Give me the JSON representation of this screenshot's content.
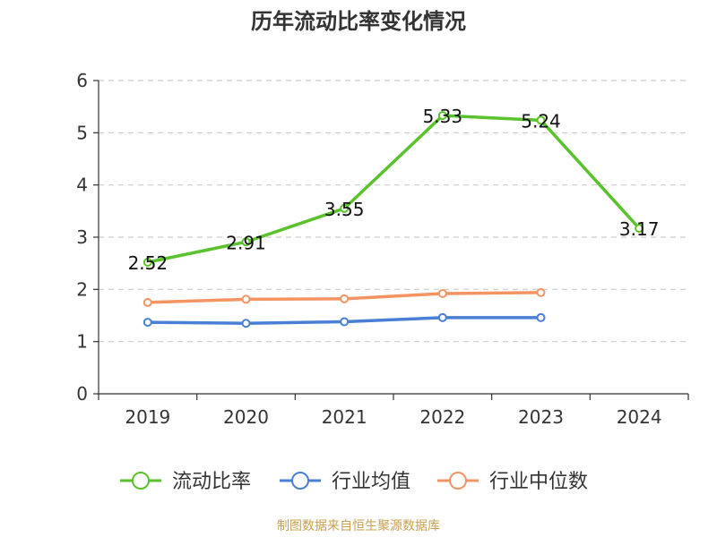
{
  "chart_data": {
    "type": "line",
    "title": "历年流动比率变化情况",
    "categories": [
      "2019",
      "2020",
      "2021",
      "2022",
      "2023",
      "2024"
    ],
    "y_ticks": [
      0,
      1,
      2,
      3,
      4,
      5,
      6
    ],
    "ylim": [
      0,
      6
    ],
    "grid": "horizontal-dashed",
    "legend_position": "bottom",
    "series": [
      {
        "name": "流动比率",
        "color": "#5ac22c",
        "values": [
          2.52,
          2.91,
          3.55,
          5.33,
          5.24,
          3.17
        ],
        "data_labels": [
          "2.52",
          "2.91",
          "3.55",
          "5.33",
          "5.24",
          "3.17"
        ]
      },
      {
        "name": "行业均值",
        "color": "#4a7fd6",
        "values": [
          1.37,
          1.35,
          1.38,
          1.46,
          1.46,
          null
        ]
      },
      {
        "name": "行业中位数",
        "color": "#f59463",
        "values": [
          1.75,
          1.81,
          1.82,
          1.92,
          1.94,
          null
        ]
      }
    ]
  },
  "footer": {
    "source": "制图数据来自恒生聚源数据库"
  }
}
